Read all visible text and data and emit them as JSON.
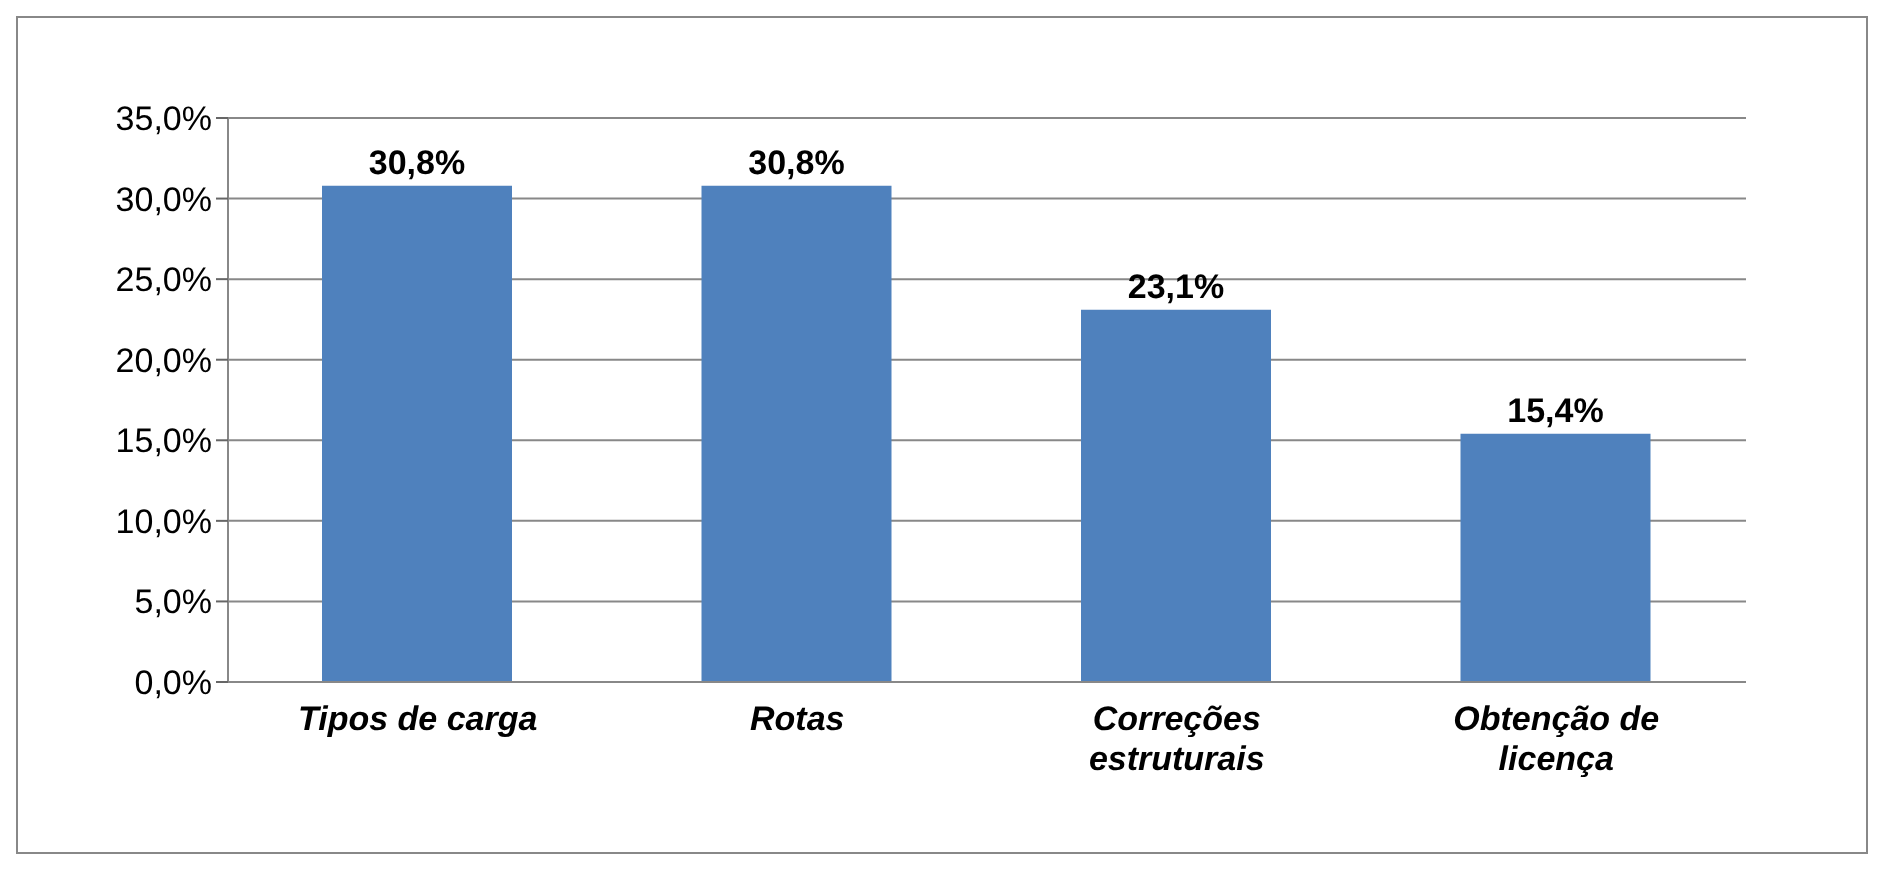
{
  "chart_data": {
    "type": "bar",
    "categories": [
      "Tipos de carga",
      "Rotas",
      "Correções estruturais",
      "Obtenção de licença"
    ],
    "values": [
      30.8,
      30.8,
      23.1,
      15.4
    ],
    "color": "#4f81bd",
    "value_labels": [
      "30,8%",
      "30,8%",
      "23,1%",
      "15,4%"
    ],
    "ylim": [
      0,
      35
    ],
    "yticks": [
      {
        "value": 0,
        "label": "0,0%"
      },
      {
        "value": 5,
        "label": "5,0%"
      },
      {
        "value": 10,
        "label": "10,0%"
      },
      {
        "value": 15,
        "label": "15,0%"
      },
      {
        "value": 20,
        "label": "20,0%"
      },
      {
        "value": 25,
        "label": "25,0%"
      },
      {
        "value": 30,
        "label": "30,0%"
      },
      {
        "value": 35,
        "label": "35,0%"
      }
    ],
    "grid": "y",
    "legend": false
  }
}
